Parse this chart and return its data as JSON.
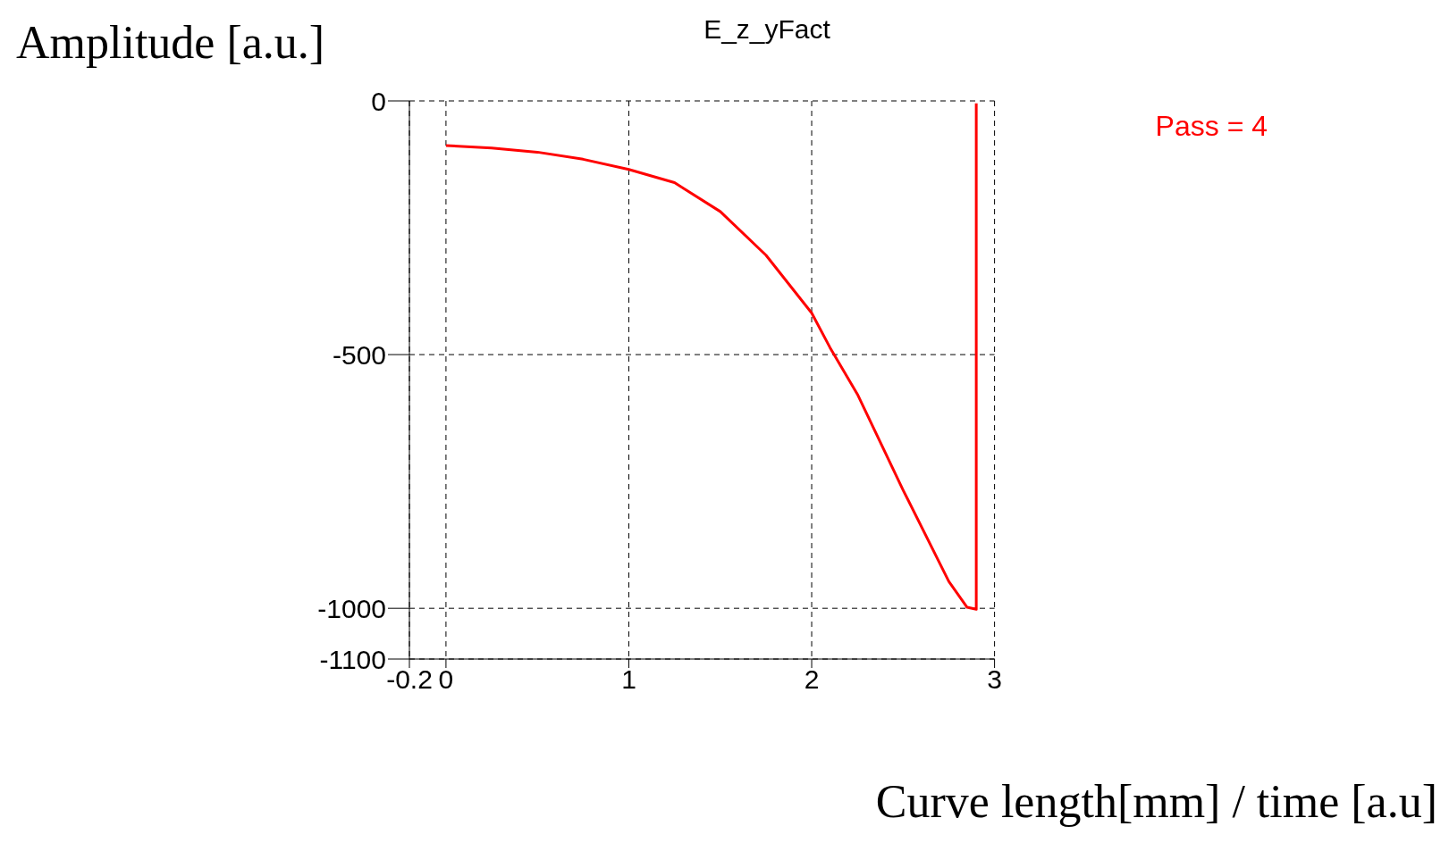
{
  "chart_data": {
    "type": "line",
    "title": "E_z_yFact",
    "xlabel": "Curve length[mm] / time [a.u]",
    "ylabel": "Amplitude [a.u.]",
    "xlim": [
      -0.2,
      3
    ],
    "xticks": [
      -0.2,
      0,
      1,
      2,
      3
    ],
    "ylim": [
      -1100,
      0
    ],
    "yticks": [
      0,
      -500,
      -1000,
      -1100
    ],
    "grid": true,
    "line_style": "solid",
    "marker": "none",
    "legend": "top right",
    "series": [
      {
        "name": "Pass = 4",
        "color": "#ff0000",
        "x": [
          0,
          0.25,
          0.5,
          0.75,
          1,
          1.25,
          1.5,
          1.75,
          2,
          2.1,
          2.25,
          2.5,
          2.75,
          2.85,
          2.9,
          2.9
        ],
        "values": [
          -88,
          -93,
          -101,
          -115,
          -135,
          -161,
          -218,
          -304,
          -418,
          -486,
          -578,
          -767,
          -947,
          -998,
          -1002,
          -5
        ]
      }
    ]
  }
}
